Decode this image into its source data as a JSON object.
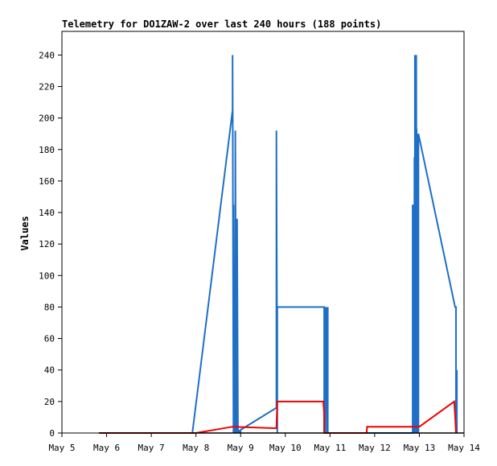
{
  "chart_data": {
    "type": "line",
    "title": "Telemetry for DO1ZAW-2 over last 240 hours (188 points)",
    "xlabel": "",
    "ylabel": "Values",
    "x_tick_labels": [
      "May 5",
      "May 6",
      "May 7",
      "May 8",
      "May 9",
      "May 10",
      "May 11",
      "May 12",
      "May 13",
      "May 14"
    ],
    "xlim": [
      0,
      9
    ],
    "ylim": [
      0,
      255
    ],
    "y_ticks": [
      0,
      20,
      40,
      60,
      80,
      100,
      120,
      140,
      160,
      180,
      200,
      220,
      240
    ],
    "grid": false,
    "colors": {
      "blue": "#1f6fc6",
      "red": "#ee0000",
      "black": "#000000"
    },
    "series": [
      {
        "color": "blue",
        "x": [
          0.83,
          2.92,
          3.82,
          3.82,
          3.84,
          3.84,
          3.86,
          3.86,
          3.88,
          3.88,
          3.9,
          3.9,
          3.92,
          3.92,
          3.94,
          3.94,
          3.96,
          3.96,
          3.98,
          3.98,
          4.0,
          4.0,
          4.8,
          4.8,
          4.82,
          4.82,
          5.87,
          5.87,
          5.89,
          5.89,
          5.91,
          5.91,
          5.93,
          5.93,
          5.95,
          5.95,
          7.85,
          7.85,
          7.86,
          7.86,
          7.87,
          7.87,
          7.88,
          7.88,
          7.89,
          7.89,
          7.9,
          7.9,
          7.91,
          7.91,
          7.92,
          7.92,
          7.93,
          7.93,
          7.94,
          7.94,
          7.95,
          7.95,
          7.96,
          7.96,
          7.97,
          7.97,
          7.98,
          7.98,
          8.8,
          8.82,
          8.82,
          8.84,
          8.84
        ],
        "y": [
          0,
          0,
          205,
          240,
          0,
          145,
          0,
          55,
          0,
          192,
          0,
          80,
          0,
          136,
          0,
          2,
          0,
          2,
          0,
          2,
          0,
          2,
          16,
          192,
          0,
          80,
          80,
          0,
          80,
          0,
          80,
          40,
          80,
          0,
          80,
          0,
          0,
          145,
          0,
          120,
          0,
          145,
          0,
          50,
          0,
          175,
          0,
          240,
          0,
          50,
          0,
          225,
          0,
          240,
          0,
          193,
          0,
          190,
          0,
          190,
          0,
          190,
          0,
          190,
          80,
          80,
          10,
          40,
          0
        ]
      },
      {
        "color": "red",
        "x": [
          0.83,
          3.0,
          3.82,
          4.8,
          4.82,
          5.85,
          5.87,
          5.87,
          5.88,
          6.82,
          6.83,
          7.86,
          8.0,
          8.78,
          8.8,
          8.82
        ],
        "y": [
          0,
          0,
          4,
          3,
          20,
          20,
          12,
          1,
          0,
          0,
          4,
          4,
          4,
          20,
          11,
          0
        ]
      },
      {
        "color": "black",
        "x": [
          0.83,
          9.0
        ],
        "y": [
          0,
          0
        ]
      }
    ]
  }
}
